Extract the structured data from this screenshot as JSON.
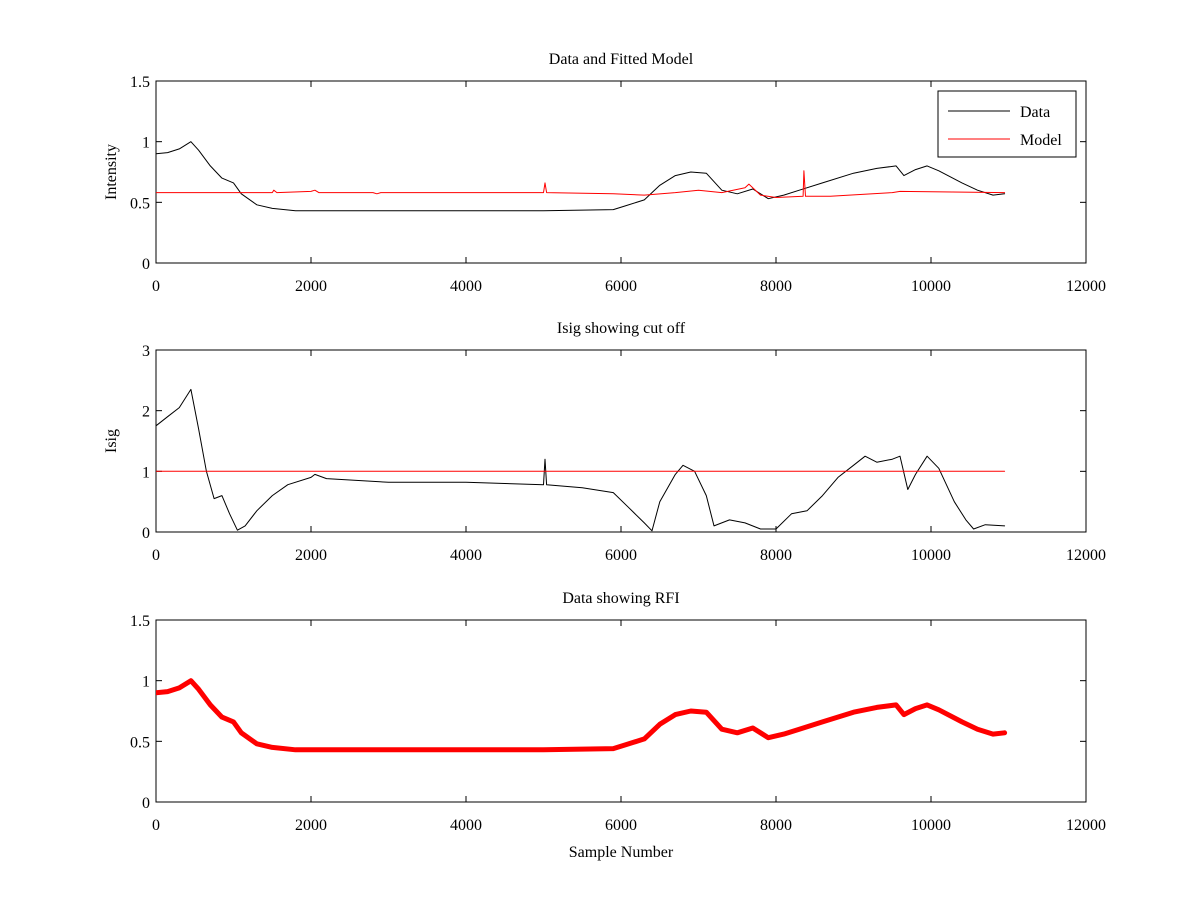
{
  "figure": {
    "background": "#ffffff",
    "axis_color": "#000000"
  },
  "chart_data": [
    {
      "type": "line",
      "title": "Data and Fitted Model",
      "xlabel": "",
      "ylabel": "Intensity",
      "xlim": [
        0,
        12000
      ],
      "ylim": [
        0,
        1.5
      ],
      "xticks": [
        0,
        2000,
        4000,
        6000,
        8000,
        10000,
        12000
      ],
      "xtick_labels": [
        "0",
        "2000",
        "4000",
        "6000",
        "8000",
        "10000",
        "12000"
      ],
      "yticks": [
        0,
        0.5,
        1,
        1.5
      ],
      "ytick_labels": [
        "0",
        "0.5",
        "1",
        "1.5"
      ],
      "grid": false,
      "legend": "top-right",
      "series": [
        {
          "name": "Data",
          "color": "#000000",
          "width": 1,
          "points": [
            [
              0,
              0.9
            ],
            [
              150,
              0.91
            ],
            [
              300,
              0.94
            ],
            [
              450,
              1.0
            ],
            [
              550,
              0.93
            ],
            [
              700,
              0.8
            ],
            [
              850,
              0.7
            ],
            [
              1000,
              0.66
            ],
            [
              1100,
              0.57
            ],
            [
              1300,
              0.48
            ],
            [
              1500,
              0.45
            ],
            [
              1800,
              0.43
            ],
            [
              2500,
              0.43
            ],
            [
              3000,
              0.43
            ],
            [
              4000,
              0.43
            ],
            [
              5000,
              0.43
            ],
            [
              5900,
              0.44
            ],
            [
              6050,
              0.47
            ],
            [
              6300,
              0.52
            ],
            [
              6500,
              0.64
            ],
            [
              6700,
              0.72
            ],
            [
              6900,
              0.75
            ],
            [
              7100,
              0.74
            ],
            [
              7300,
              0.6
            ],
            [
              7500,
              0.57
            ],
            [
              7700,
              0.61
            ],
            [
              7900,
              0.53
            ],
            [
              8100,
              0.56
            ],
            [
              8300,
              0.6
            ],
            [
              8600,
              0.66
            ],
            [
              9000,
              0.74
            ],
            [
              9300,
              0.78
            ],
            [
              9550,
              0.8
            ],
            [
              9650,
              0.72
            ],
            [
              9800,
              0.77
            ],
            [
              9950,
              0.8
            ],
            [
              10100,
              0.76
            ],
            [
              10400,
              0.66
            ],
            [
              10600,
              0.6
            ],
            [
              10800,
              0.56
            ],
            [
              10950,
              0.57
            ]
          ]
        },
        {
          "name": "Model",
          "color": "#ff0000",
          "width": 1,
          "points": [
            [
              0,
              0.58
            ],
            [
              1500,
              0.58
            ],
            [
              1520,
              0.6
            ],
            [
              1560,
              0.58
            ],
            [
              2000,
              0.59
            ],
            [
              2050,
              0.6
            ],
            [
              2100,
              0.58
            ],
            [
              2800,
              0.58
            ],
            [
              2850,
              0.57
            ],
            [
              2900,
              0.58
            ],
            [
              5000,
              0.58
            ],
            [
              5020,
              0.66
            ],
            [
              5040,
              0.58
            ],
            [
              5900,
              0.57
            ],
            [
              6300,
              0.56
            ],
            [
              6700,
              0.58
            ],
            [
              7000,
              0.6
            ],
            [
              7300,
              0.58
            ],
            [
              7600,
              0.62
            ],
            [
              7650,
              0.65
            ],
            [
              7800,
              0.56
            ],
            [
              8000,
              0.54
            ],
            [
              8350,
              0.55
            ],
            [
              8360,
              0.76
            ],
            [
              8380,
              0.55
            ],
            [
              8700,
              0.55
            ],
            [
              9500,
              0.58
            ],
            [
              9600,
              0.59
            ],
            [
              10950,
              0.58
            ]
          ]
        }
      ]
    },
    {
      "type": "line",
      "title": "Isig showing cut off",
      "xlabel": "",
      "ylabel": "Isig",
      "xlim": [
        0,
        12000
      ],
      "ylim": [
        0,
        3
      ],
      "xticks": [
        0,
        2000,
        4000,
        6000,
        8000,
        10000,
        12000
      ],
      "xtick_labels": [
        "0",
        "2000",
        "4000",
        "6000",
        "8000",
        "10000",
        "12000"
      ],
      "yticks": [
        0,
        1,
        2,
        3
      ],
      "ytick_labels": [
        "0",
        "1",
        "2",
        "3"
      ],
      "grid": false,
      "series": [
        {
          "color": "#000000",
          "width": 1,
          "points": [
            [
              0,
              1.75
            ],
            [
              150,
              1.9
            ],
            [
              300,
              2.05
            ],
            [
              450,
              2.35
            ],
            [
              550,
              1.7
            ],
            [
              650,
              1.0
            ],
            [
              750,
              0.55
            ],
            [
              850,
              0.6
            ],
            [
              950,
              0.3
            ],
            [
              1050,
              0.03
            ],
            [
              1150,
              0.1
            ],
            [
              1300,
              0.35
            ],
            [
              1500,
              0.6
            ],
            [
              1700,
              0.78
            ],
            [
              2000,
              0.9
            ],
            [
              2050,
              0.95
            ],
            [
              2200,
              0.88
            ],
            [
              3000,
              0.82
            ],
            [
              4000,
              0.82
            ],
            [
              4500,
              0.8
            ],
            [
              5000,
              0.78
            ],
            [
              5020,
              1.2
            ],
            [
              5040,
              0.78
            ],
            [
              5500,
              0.73
            ],
            [
              5900,
              0.65
            ],
            [
              6100,
              0.4
            ],
            [
              6300,
              0.15
            ],
            [
              6400,
              0.02
            ],
            [
              6500,
              0.5
            ],
            [
              6700,
              0.95
            ],
            [
              6800,
              1.1
            ],
            [
              6950,
              1.0
            ],
            [
              7100,
              0.6
            ],
            [
              7200,
              0.1
            ],
            [
              7400,
              0.2
            ],
            [
              7600,
              0.15
            ],
            [
              7800,
              0.05
            ],
            [
              8000,
              0.05
            ],
            [
              8200,
              0.3
            ],
            [
              8400,
              0.35
            ],
            [
              8600,
              0.6
            ],
            [
              8800,
              0.9
            ],
            [
              9000,
              1.1
            ],
            [
              9150,
              1.25
            ],
            [
              9300,
              1.15
            ],
            [
              9500,
              1.2
            ],
            [
              9600,
              1.25
            ],
            [
              9700,
              0.7
            ],
            [
              9800,
              0.95
            ],
            [
              9950,
              1.25
            ],
            [
              10100,
              1.05
            ],
            [
              10300,
              0.5
            ],
            [
              10450,
              0.2
            ],
            [
              10550,
              0.05
            ],
            [
              10700,
              0.12
            ],
            [
              10950,
              0.1
            ]
          ]
        },
        {
          "color": "#ff0000",
          "width": 1,
          "points": [
            [
              0,
              1.0
            ],
            [
              10950,
              1.0
            ]
          ]
        }
      ]
    },
    {
      "type": "line",
      "title": "Data showing RFI",
      "xlabel": "Sample Number",
      "ylabel": "",
      "xlim": [
        0,
        12000
      ],
      "ylim": [
        0,
        1.5
      ],
      "xticks": [
        0,
        2000,
        4000,
        6000,
        8000,
        10000,
        12000
      ],
      "xtick_labels": [
        "0",
        "2000",
        "4000",
        "6000",
        "8000",
        "10000",
        "12000"
      ],
      "yticks": [
        0,
        0.5,
        1,
        1.5
      ],
      "ytick_labels": [
        "0",
        "0.5",
        "1",
        "1.5"
      ],
      "grid": false,
      "series": [
        {
          "color": "#ff0000",
          "width": 5,
          "points": [
            [
              0,
              0.9
            ],
            [
              150,
              0.91
            ],
            [
              300,
              0.94
            ],
            [
              450,
              1.0
            ],
            [
              550,
              0.93
            ],
            [
              700,
              0.8
            ],
            [
              850,
              0.7
            ],
            [
              1000,
              0.66
            ],
            [
              1100,
              0.57
            ],
            [
              1300,
              0.48
            ],
            [
              1500,
              0.45
            ],
            [
              1800,
              0.43
            ],
            [
              2500,
              0.43
            ],
            [
              3000,
              0.43
            ],
            [
              4000,
              0.43
            ],
            [
              5000,
              0.43
            ],
            [
              5900,
              0.44
            ],
            [
              6050,
              0.47
            ],
            [
              6300,
              0.52
            ],
            [
              6500,
              0.64
            ],
            [
              6700,
              0.72
            ],
            [
              6900,
              0.75
            ],
            [
              7100,
              0.74
            ],
            [
              7300,
              0.6
            ],
            [
              7500,
              0.57
            ],
            [
              7700,
              0.61
            ],
            [
              7900,
              0.53
            ],
            [
              8100,
              0.56
            ],
            [
              8300,
              0.6
            ],
            [
              8600,
              0.66
            ],
            [
              9000,
              0.74
            ],
            [
              9300,
              0.78
            ],
            [
              9550,
              0.8
            ],
            [
              9650,
              0.72
            ],
            [
              9800,
              0.77
            ],
            [
              9950,
              0.8
            ],
            [
              10100,
              0.76
            ],
            [
              10400,
              0.66
            ],
            [
              10600,
              0.6
            ],
            [
              10800,
              0.56
            ],
            [
              10950,
              0.57
            ]
          ]
        }
      ]
    }
  ]
}
